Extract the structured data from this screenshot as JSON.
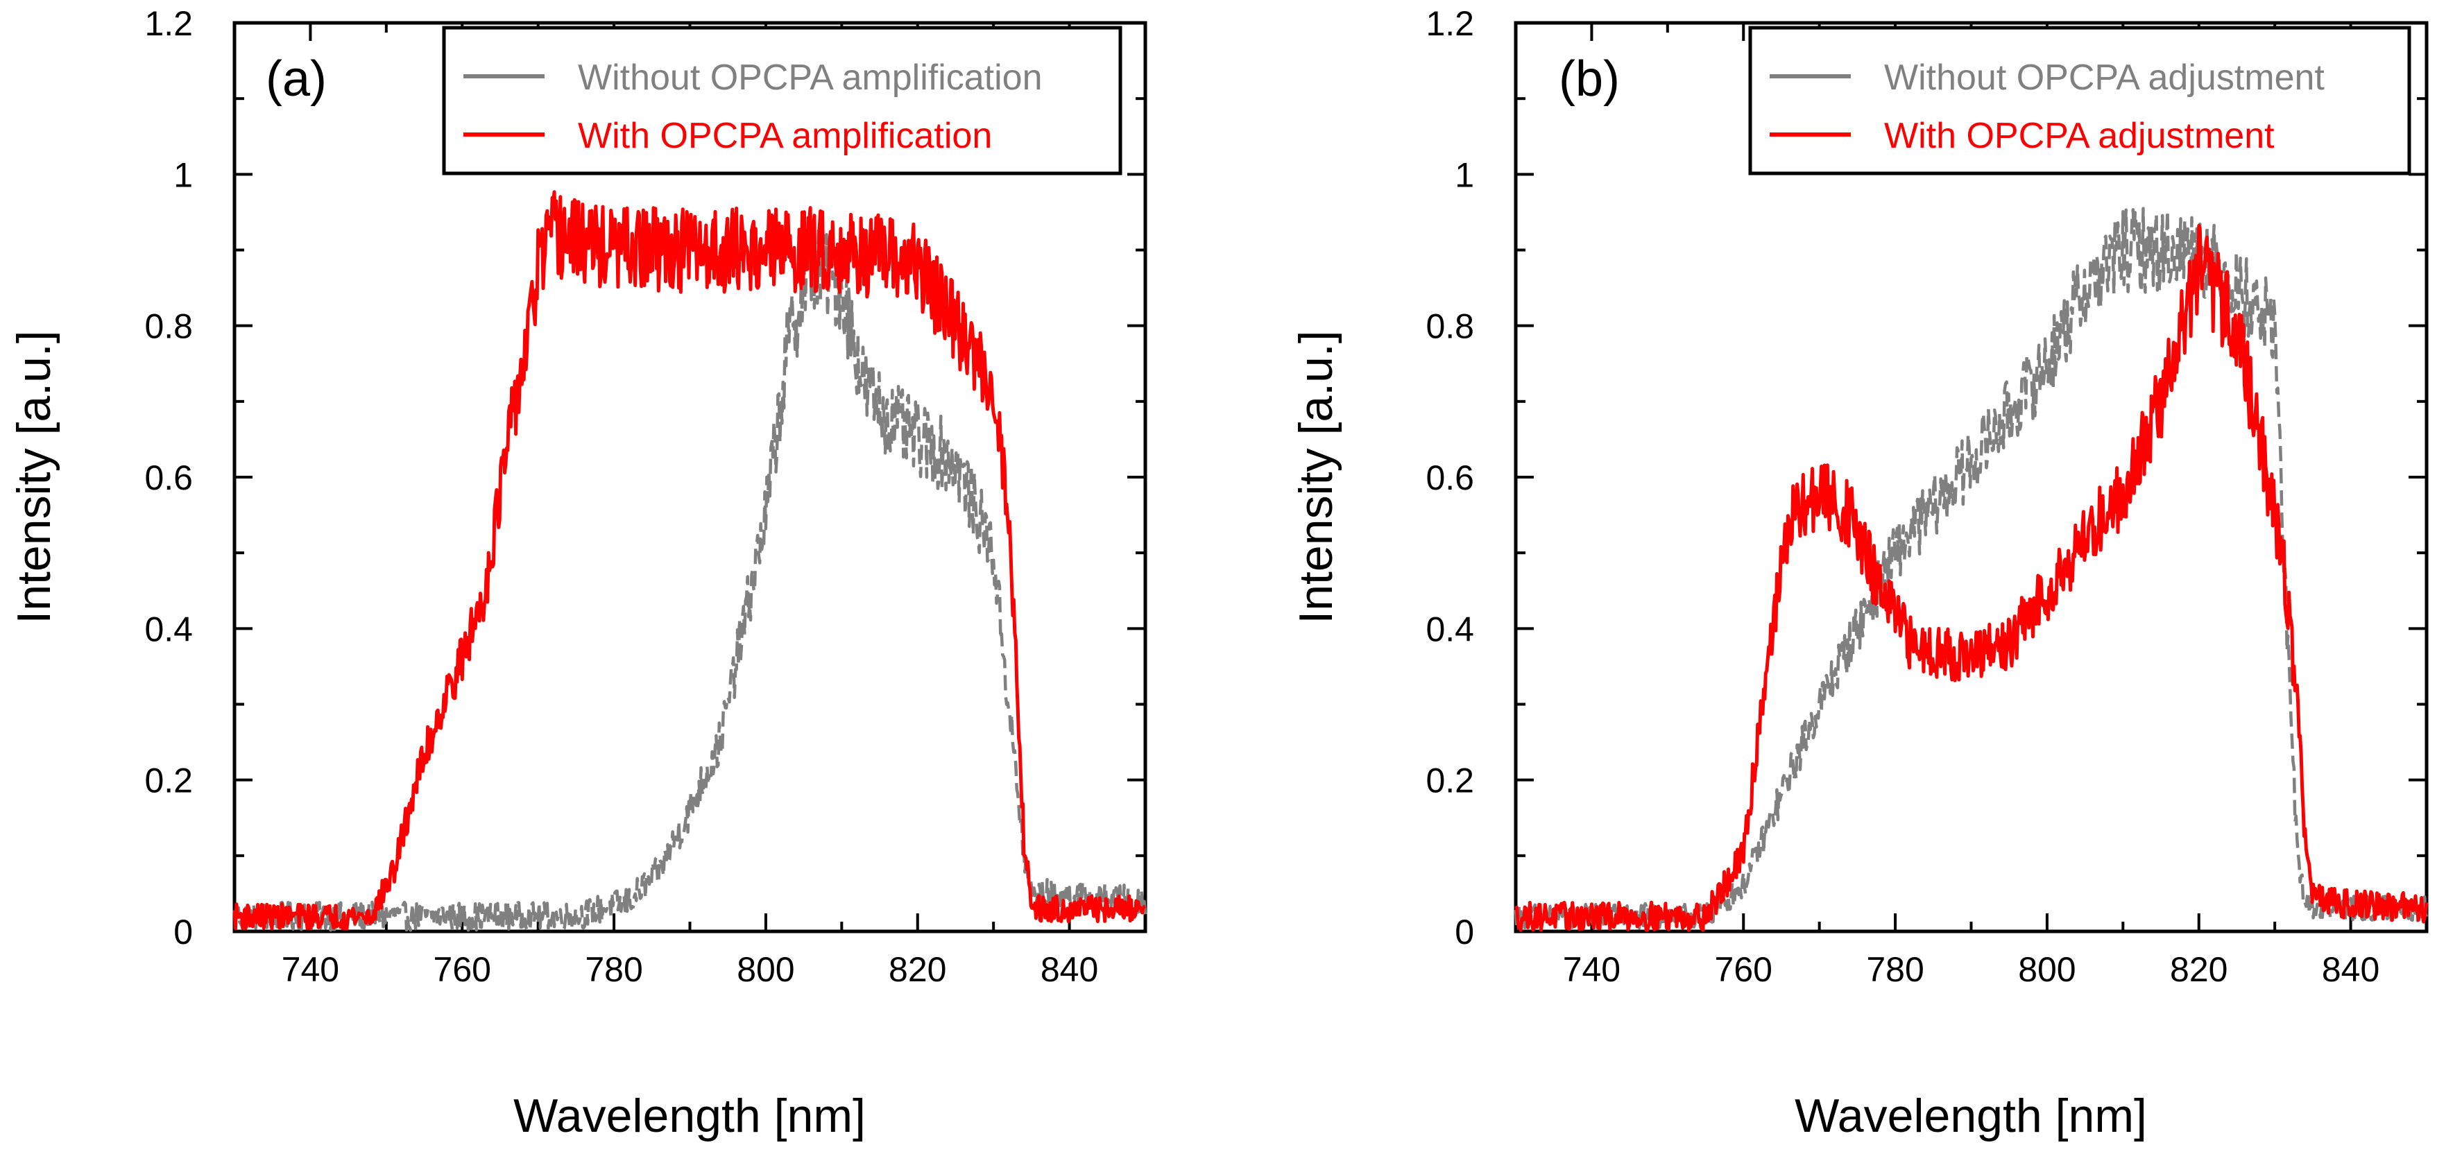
{
  "chart_data": [
    {
      "type": "line",
      "panel_label": "(a)",
      "xlabel": "Wavelength [nm]",
      "ylabel": "Intensity [a.u.]",
      "xlim": [
        730,
        850
      ],
      "ylim": [
        0,
        1.2
      ],
      "xticks": [
        740,
        760,
        780,
        800,
        820,
        840
      ],
      "yticks": [
        0,
        0.2,
        0.4,
        0.6,
        0.8,
        1,
        1.2
      ],
      "ytick_labels": [
        "0",
        "0.2",
        "0.4",
        "0.6",
        "0.8",
        "1",
        "1.2"
      ],
      "legend_position": "top-right",
      "series": [
        {
          "name": "Without OPCPA amplification",
          "color": "#808080",
          "style": "dashed-noisy",
          "noise": 0.05,
          "x": [
            730,
            775,
            782,
            786,
            790,
            794,
            797,
            800,
            803,
            806,
            810,
            813,
            816,
            820,
            825,
            830,
            832,
            834,
            835,
            836,
            850
          ],
          "y": [
            0.02,
            0.02,
            0.04,
            0.08,
            0.16,
            0.25,
            0.4,
            0.55,
            0.78,
            0.88,
            0.85,
            0.72,
            0.68,
            0.65,
            0.62,
            0.5,
            0.3,
            0.1,
            0.05,
            0.05,
            0.04
          ]
        },
        {
          "name": "With OPCPA amplification",
          "color": "#ff0000",
          "style": "solid-noisy",
          "noise": 0.045,
          "x": [
            730,
            748,
            751,
            754,
            757,
            760,
            763,
            765,
            767,
            769,
            770,
            772,
            780,
            790,
            800,
            810,
            820,
            825,
            830,
            832,
            833,
            834,
            835,
            836,
            850
          ],
          "y": [
            0.02,
            0.02,
            0.08,
            0.2,
            0.29,
            0.36,
            0.45,
            0.58,
            0.7,
            0.8,
            0.88,
            0.92,
            0.9,
            0.9,
            0.9,
            0.9,
            0.88,
            0.8,
            0.72,
            0.55,
            0.35,
            0.12,
            0.04,
            0.03,
            0.03
          ]
        }
      ]
    },
    {
      "type": "line",
      "panel_label": "(b)",
      "xlabel": "Wavelength [nm]",
      "ylabel": "Intensity [a.u.]",
      "xlim": [
        730,
        850
      ],
      "ylim": [
        0,
        1.2
      ],
      "xticks": [
        740,
        760,
        780,
        800,
        820,
        840
      ],
      "yticks": [
        0,
        0.2,
        0.4,
        0.6,
        0.8,
        1,
        1.2
      ],
      "ytick_labels": [
        "0",
        "0.2",
        "0.4",
        "0.6",
        "0.8",
        "1",
        "1.2"
      ],
      "legend_position": "top-right",
      "series": [
        {
          "name": "Without OPCPA adjustment",
          "color": "#808080",
          "style": "dashed-noisy",
          "noise": 0.045,
          "x": [
            730,
            755,
            760,
            765,
            770,
            775,
            780,
            790,
            800,
            805,
            810,
            815,
            820,
            825,
            830,
            831,
            832,
            833,
            834,
            835,
            850
          ],
          "y": [
            0.02,
            0.02,
            0.06,
            0.18,
            0.3,
            0.4,
            0.5,
            0.62,
            0.75,
            0.85,
            0.9,
            0.9,
            0.9,
            0.85,
            0.8,
            0.55,
            0.3,
            0.1,
            0.04,
            0.03,
            0.03
          ]
        },
        {
          "name": "With OPCPA adjustment",
          "color": "#ff0000",
          "style": "solid-noisy",
          "noise": 0.05,
          "x": [
            730,
            755,
            760,
            763,
            766,
            770,
            774,
            778,
            782,
            790,
            795,
            800,
            805,
            810,
            815,
            820,
            825,
            828,
            831,
            833,
            834,
            835,
            836,
            850
          ],
          "y": [
            0.02,
            0.02,
            0.1,
            0.35,
            0.54,
            0.58,
            0.55,
            0.45,
            0.38,
            0.36,
            0.38,
            0.45,
            0.52,
            0.58,
            0.7,
            0.88,
            0.8,
            0.65,
            0.5,
            0.3,
            0.12,
            0.05,
            0.04,
            0.03
          ]
        }
      ]
    }
  ]
}
